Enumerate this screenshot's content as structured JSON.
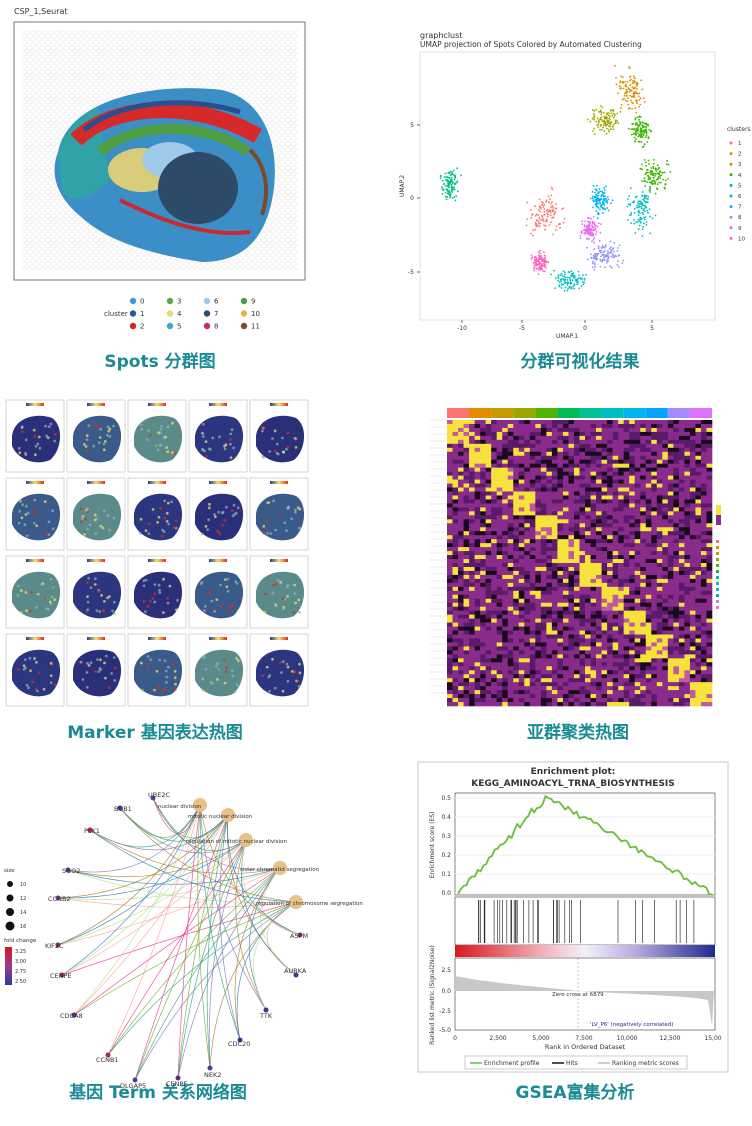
{
  "panels": [
    {
      "caption": "Spots 分群图",
      "title": "CSP_1,Seurat",
      "legend_title": "cluster",
      "legend_labels": [
        "0",
        "1",
        "2",
        "3",
        "4",
        "5",
        "6",
        "7",
        "8",
        "9",
        "10",
        "11"
      ]
    },
    {
      "caption": "分群可视化结果",
      "title": "graphclust",
      "subtitle": "UMAP projection of Spots Colored by Automated Clustering",
      "x_label": "UMAP.1",
      "y_label": "UMAP.2",
      "x_ticks": [
        "-10",
        "-5",
        "0",
        "5"
      ],
      "y_ticks": [
        "5",
        "0",
        "-5"
      ],
      "legend_title": "clusters",
      "legend_labels": [
        "1",
        "2",
        "3",
        "4",
        "5",
        "6",
        "7",
        "8",
        "9",
        "10"
      ]
    },
    {
      "caption": "Marker 基因表达热图"
    },
    {
      "caption": "亚群聚类热图"
    },
    {
      "caption": "基因 Term 关系网络图",
      "genes": [
        "UBE2C",
        "BUB1",
        "PLK1",
        "SGO2",
        "CCNB2",
        "KIF2C",
        "CENPE",
        "CDCA8",
        "CCNB1",
        "DLGAP5",
        "CENPF",
        "NEK2",
        "CDC20",
        "TTK",
        "AURKA",
        "ASPM"
      ],
      "terms": [
        "nuclear division",
        "mitotic nuclear division",
        "regulation of mitotic nuclear division",
        "sister chromatid segregation",
        "regulation of chromosome segregation"
      ],
      "size_title": "size",
      "size_labels": [
        "10",
        "12",
        "14",
        "16"
      ],
      "fold_title": "fold change",
      "fold_labels": [
        "3.25",
        "3.00",
        "2.75",
        "2.50"
      ]
    },
    {
      "caption": "GSEA富集分析",
      "title": "Enrichment plot:",
      "subtitle": "KEGG_AMINOACYL_TRNA_BIOSYNTHESIS",
      "es_label": "Enrichment score (ES)",
      "es_ticks": [
        "0.5",
        "0.4",
        "0.3",
        "0.2",
        "0.1",
        "0.0"
      ],
      "metric_label": "Ranked list metric (Signal2Noise)",
      "metric_ticks": [
        "2.5",
        "0.0",
        "-2.5",
        "-5.0"
      ],
      "x_ticks": [
        "0",
        "2,500",
        "5,000",
        "7,500",
        "10,000",
        "12,500",
        "15,00"
      ],
      "x_label": "Rank in Ordered Dataset",
      "pos_label": "20M (positively correlated)",
      "zero_cross": "Zero cross at 6879",
      "neg_label": "'LV_P6' (negatively correlated)",
      "legend": [
        "Enrichment profile",
        "Hits",
        "Ranking metric scores"
      ]
    }
  ]
}
